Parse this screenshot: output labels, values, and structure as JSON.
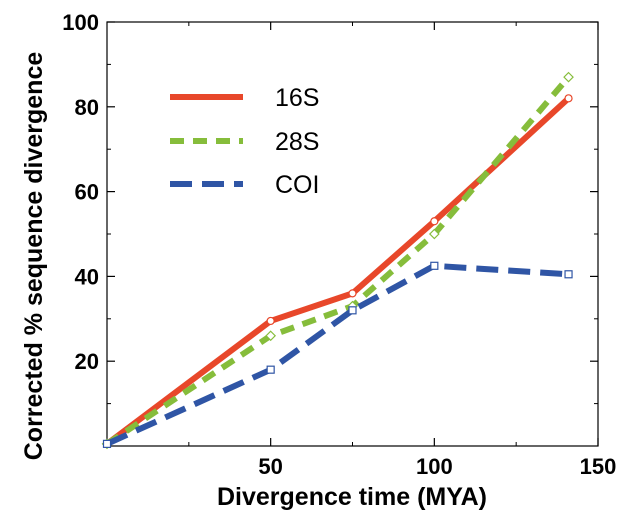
{
  "chart_data": {
    "type": "line",
    "xlabel": "Divergence time  (MYA)",
    "ylabel": "Corrected % sequence divergence",
    "xlim": [
      0,
      150
    ],
    "ylim": [
      0,
      100
    ],
    "xticks": [
      50,
      100,
      150
    ],
    "yticks": [
      20,
      40,
      60,
      80,
      100
    ],
    "grid": false,
    "legend_position": "top-left",
    "series": [
      {
        "name": "16S",
        "color": "#e8472a",
        "dash": "solid",
        "marker": "circle",
        "x": [
          0,
          50,
          75,
          100,
          141
        ],
        "y": [
          0.5,
          29.5,
          36,
          53,
          82
        ]
      },
      {
        "name": "28S",
        "color": "#86bd3b",
        "dash": "dashed",
        "marker": "diamond",
        "x": [
          0,
          50,
          75,
          100,
          141
        ],
        "y": [
          0.5,
          26,
          33,
          50,
          87
        ]
      },
      {
        "name": "COI",
        "color": "#2f55a5",
        "dash": "dashed",
        "marker": "square",
        "x": [
          0,
          50,
          75,
          100,
          141
        ],
        "y": [
          0.5,
          18,
          32,
          42.5,
          40.5
        ]
      }
    ]
  }
}
